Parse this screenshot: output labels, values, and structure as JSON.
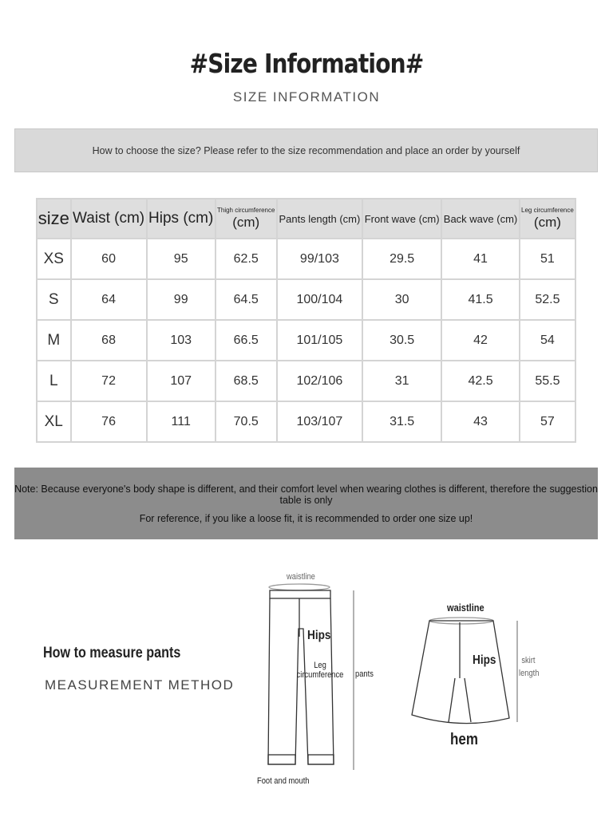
{
  "title": "#Size Information#",
  "subtitle": "SIZE INFORMATION",
  "notice": "How to choose the size? Please refer to the size recommendation and place an order by yourself",
  "table": {
    "headers": [
      {
        "main": "size"
      },
      {
        "main": "Waist (cm)"
      },
      {
        "main": "Hips (cm)"
      },
      {
        "top": "Thigh circumference",
        "main": "(cm)"
      },
      {
        "main": "Pants length (cm)"
      },
      {
        "main": "Front wave (cm)"
      },
      {
        "main": "Back wave (cm)"
      },
      {
        "top": "Leg circumference",
        "main": "(cm)"
      }
    ],
    "rows": [
      [
        "XS",
        "60",
        "95",
        "62.5",
        "99/103",
        "29.5",
        "41",
        "51"
      ],
      [
        "S",
        "64",
        "99",
        "64.5",
        "100/104",
        "30",
        "41.5",
        "52.5"
      ],
      [
        "M",
        "68",
        "103",
        "66.5",
        "101/105",
        "30.5",
        "42",
        "54"
      ],
      [
        "L",
        "72",
        "107",
        "68.5",
        "102/106",
        "31",
        "42.5",
        "55.5"
      ],
      [
        "XL",
        "76",
        "111",
        "70.5",
        "103/107",
        "31.5",
        "43",
        "57"
      ]
    ]
  },
  "note": {
    "line1": "Note: Because everyone's body shape is different, and their comfort level when wearing clothes is different, therefore the suggestion table is only",
    "line2": "For reference, if you like a loose fit, it is recommended to order one size up!"
  },
  "measure": {
    "heading": "How to measure pants",
    "subheading": "MEASUREMENT METHOD",
    "pants_labels": {
      "waistline": "waistline",
      "hips": "Hips",
      "leg": "Leg circumference",
      "pants": "pants",
      "foot": "Foot and mouth"
    },
    "skirt_labels": {
      "waistline": "waistline",
      "hips": "Hips",
      "length": "skirt length",
      "hem": "hem"
    }
  }
}
